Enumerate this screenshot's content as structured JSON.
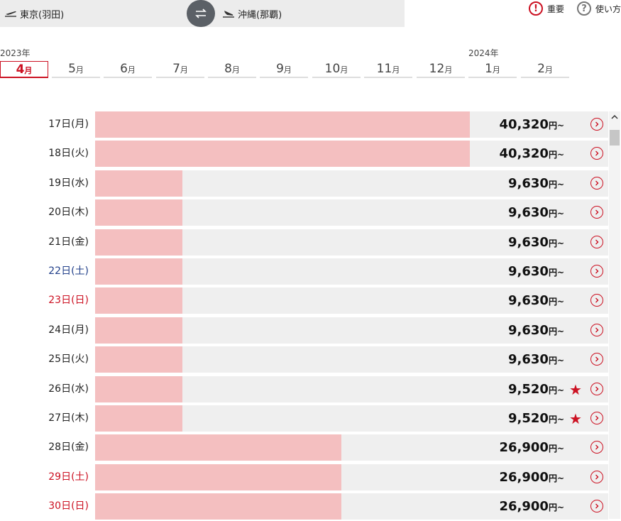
{
  "route": {
    "from": "東京(羽田)",
    "to": "沖縄(那覇)"
  },
  "links": {
    "important": "重要",
    "howto": "使い方"
  },
  "years": {
    "y2023": "2023年",
    "y2024": "2024年"
  },
  "months": [
    {
      "num": "4",
      "unit": "月",
      "active": true
    },
    {
      "num": "5",
      "unit": "月"
    },
    {
      "num": "6",
      "unit": "月"
    },
    {
      "num": "7",
      "unit": "月"
    },
    {
      "num": "8",
      "unit": "月"
    },
    {
      "num": "9",
      "unit": "月"
    },
    {
      "num": "10",
      "unit": "月"
    },
    {
      "num": "11",
      "unit": "月"
    },
    {
      "num": "12",
      "unit": "月"
    },
    {
      "num": "1",
      "unit": "月"
    },
    {
      "num": "2",
      "unit": "月"
    }
  ],
  "price_unit": "円~",
  "fares": [
    {
      "date": "17日(月)",
      "price": "40,320",
      "fill": 0.73,
      "day": "weekday",
      "star": false
    },
    {
      "date": "18日(火)",
      "price": "40,320",
      "fill": 0.73,
      "day": "weekday",
      "star": false
    },
    {
      "date": "19日(水)",
      "price": "9,630",
      "fill": 0.17,
      "day": "weekday",
      "star": false
    },
    {
      "date": "20日(木)",
      "price": "9,630",
      "fill": 0.17,
      "day": "weekday",
      "star": false
    },
    {
      "date": "21日(金)",
      "price": "9,630",
      "fill": 0.17,
      "day": "weekday",
      "star": false
    },
    {
      "date": "22日(土)",
      "price": "9,630",
      "fill": 0.17,
      "day": "sat",
      "star": false
    },
    {
      "date": "23日(日)",
      "price": "9,630",
      "fill": 0.17,
      "day": "sun",
      "star": false
    },
    {
      "date": "24日(月)",
      "price": "9,630",
      "fill": 0.17,
      "day": "weekday",
      "star": false
    },
    {
      "date": "25日(火)",
      "price": "9,630",
      "fill": 0.17,
      "day": "weekday",
      "star": false
    },
    {
      "date": "26日(水)",
      "price": "9,520",
      "fill": 0.17,
      "day": "weekday",
      "star": true
    },
    {
      "date": "27日(木)",
      "price": "9,520",
      "fill": 0.17,
      "day": "weekday",
      "star": true
    },
    {
      "date": "28日(金)",
      "price": "26,900",
      "fill": 0.48,
      "day": "weekday",
      "star": false
    },
    {
      "date": "29日(土)",
      "price": "26,900",
      "fill": 0.48,
      "day": "sat-red",
      "star": false
    },
    {
      "date": "30日(日)",
      "price": "26,900",
      "fill": 0.48,
      "day": "sun",
      "star": false
    }
  ],
  "colors": {
    "accent": "#cc1122",
    "bar": "#f4bfc0",
    "track": "#efefef",
    "saturday": "#22408a"
  }
}
